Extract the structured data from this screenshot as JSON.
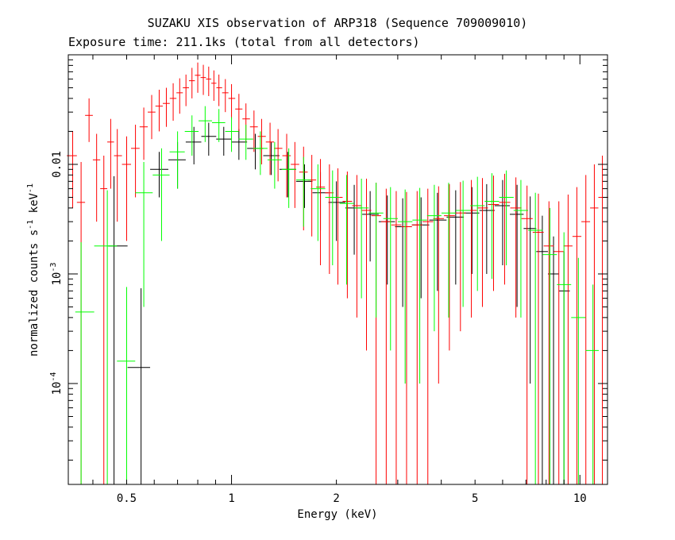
{
  "chart_data": {
    "type": "scatter",
    "title": "SUZAKU XIS observation of ARP318 (Sequence 709009010)",
    "subtitle": "Exposure time: 211.1ks (total from all detectors)",
    "xlabel": "Energy (keV)",
    "ylabel": {
      "pre": "normalized counts s",
      "exp1": "-1",
      "mid": " keV",
      "exp2": "-1"
    },
    "x_scale": "log",
    "y_scale": "log",
    "xlim": [
      0.34,
      12
    ],
    "ylim": [
      1.2e-05,
      0.1
    ],
    "x_ticks": [
      {
        "value": 0.5,
        "label": "0.5"
      },
      {
        "value": 1,
        "label": "1"
      },
      {
        "value": 2,
        "label": "2"
      },
      {
        "value": 5,
        "label": "5"
      },
      {
        "value": 10,
        "label": "10"
      }
    ],
    "y_ticks": [
      {
        "value": 0.01,
        "label": "0.01",
        "exp": ""
      },
      {
        "value": 0.001,
        "label": "10",
        "exp": "-3"
      },
      {
        "value": 0.0001,
        "label": "10",
        "exp": "-4"
      }
    ],
    "series": [
      {
        "color": "#000000",
        "points": [
          [
            0.46,
            0.0018,
            0.006
          ],
          [
            0.55,
            0.00014,
            0.0006
          ],
          [
            0.62,
            0.009,
            0.004
          ],
          [
            0.7,
            0.011,
            0.005
          ],
          [
            0.78,
            0.016,
            0.006
          ],
          [
            0.86,
            0.018,
            0.006
          ],
          [
            0.95,
            0.017,
            0.005
          ],
          [
            1.05,
            0.016,
            0.005
          ],
          [
            1.17,
            0.014,
            0.005
          ],
          [
            1.3,
            0.012,
            0.004
          ],
          [
            1.45,
            0.009,
            0.004
          ],
          [
            1.62,
            0.007,
            0.003
          ],
          [
            1.8,
            0.0055,
            0.003
          ],
          [
            2.0,
            0.0045,
            0.0025
          ],
          [
            2.25,
            0.004,
            0.0025
          ],
          [
            2.5,
            0.0035,
            0.0022
          ],
          [
            2.8,
            0.003,
            0.0022
          ],
          [
            3.1,
            0.0027,
            0.0022
          ],
          [
            3.5,
            0.0028,
            0.0022
          ],
          [
            3.9,
            0.0031,
            0.0024
          ],
          [
            4.4,
            0.0033,
            0.0025
          ],
          [
            4.9,
            0.0036,
            0.0026
          ],
          [
            5.4,
            0.0038,
            0.0028
          ],
          [
            6.0,
            0.0042,
            0.003
          ],
          [
            6.6,
            0.0035,
            0.003
          ],
          [
            7.2,
            0.0026,
            0.0025
          ],
          [
            7.8,
            0.0016,
            0.0018
          ],
          [
            8.4,
            0.001,
            0.0012
          ],
          [
            9.0,
            0.0007,
            0.0009
          ]
        ]
      },
      {
        "color": "#ff0000",
        "points": [
          [
            0.35,
            0.012,
            0.008
          ],
          [
            0.37,
            0.0045,
            0.006
          ],
          [
            0.39,
            0.028,
            0.012
          ],
          [
            0.41,
            0.011,
            0.008
          ],
          [
            0.43,
            0.006,
            0.006
          ],
          [
            0.45,
            0.016,
            0.01
          ],
          [
            0.47,
            0.012,
            0.009
          ],
          [
            0.5,
            0.01,
            0.008
          ],
          [
            0.53,
            0.014,
            0.009
          ],
          [
            0.56,
            0.022,
            0.011
          ],
          [
            0.59,
            0.03,
            0.013
          ],
          [
            0.62,
            0.034,
            0.014
          ],
          [
            0.65,
            0.036,
            0.014
          ],
          [
            0.68,
            0.04,
            0.015
          ],
          [
            0.71,
            0.045,
            0.016
          ],
          [
            0.74,
            0.05,
            0.016
          ],
          [
            0.77,
            0.058,
            0.018
          ],
          [
            0.8,
            0.065,
            0.02
          ],
          [
            0.83,
            0.062,
            0.019
          ],
          [
            0.86,
            0.06,
            0.018
          ],
          [
            0.89,
            0.055,
            0.017
          ],
          [
            0.92,
            0.05,
            0.016
          ],
          [
            0.96,
            0.045,
            0.015
          ],
          [
            1.0,
            0.04,
            0.014
          ],
          [
            1.05,
            0.032,
            0.012
          ],
          [
            1.1,
            0.026,
            0.01
          ],
          [
            1.16,
            0.022,
            0.009
          ],
          [
            1.22,
            0.018,
            0.008
          ],
          [
            1.29,
            0.016,
            0.008
          ],
          [
            1.36,
            0.014,
            0.007
          ],
          [
            1.44,
            0.012,
            0.007
          ],
          [
            1.52,
            0.01,
            0.006
          ],
          [
            1.61,
            0.0085,
            0.006
          ],
          [
            1.7,
            0.0072,
            0.005
          ],
          [
            1.8,
            0.0062,
            0.005
          ],
          [
            1.91,
            0.0055,
            0.0045
          ],
          [
            2.02,
            0.005,
            0.0042
          ],
          [
            2.15,
            0.0046,
            0.004
          ],
          [
            2.29,
            0.0042,
            0.0038
          ],
          [
            2.44,
            0.0038,
            0.0036
          ],
          [
            2.6,
            0.0034,
            0.0034
          ],
          [
            2.78,
            0.003,
            0.003
          ],
          [
            2.97,
            0.0028,
            0.0029
          ],
          [
            3.18,
            0.0027,
            0.0029
          ],
          [
            3.41,
            0.0028,
            0.0029
          ],
          [
            3.66,
            0.003,
            0.003
          ],
          [
            3.93,
            0.0032,
            0.0031
          ],
          [
            4.22,
            0.0034,
            0.0032
          ],
          [
            4.54,
            0.0036,
            0.0033
          ],
          [
            4.88,
            0.0038,
            0.0034
          ],
          [
            5.25,
            0.004,
            0.0035
          ],
          [
            5.65,
            0.0043,
            0.0036
          ],
          [
            6.08,
            0.0045,
            0.0037
          ],
          [
            6.55,
            0.004,
            0.0036
          ],
          [
            7.05,
            0.0032,
            0.0032
          ],
          [
            7.6,
            0.0024,
            0.003
          ],
          [
            8.15,
            0.0018,
            0.0028
          ],
          [
            8.7,
            0.0016,
            0.003
          ],
          [
            9.25,
            0.0018,
            0.0035
          ],
          [
            9.8,
            0.0022,
            0.004
          ],
          [
            10.4,
            0.003,
            0.005
          ],
          [
            11.0,
            0.004,
            0.006
          ],
          [
            11.6,
            0.005,
            0.007
          ]
        ]
      },
      {
        "color": "#00ff00",
        "points": [
          [
            0.37,
            0.00045,
            0.0015
          ],
          [
            0.44,
            0.0018,
            0.004
          ],
          [
            0.5,
            0.00016,
            0.0006
          ],
          [
            0.56,
            0.0055,
            0.005
          ],
          [
            0.63,
            0.008,
            0.006
          ],
          [
            0.7,
            0.013,
            0.007
          ],
          [
            0.77,
            0.02,
            0.008
          ],
          [
            0.84,
            0.025,
            0.009
          ],
          [
            0.92,
            0.024,
            0.008
          ],
          [
            1.0,
            0.02,
            0.007
          ],
          [
            1.1,
            0.017,
            0.006
          ],
          [
            1.21,
            0.014,
            0.006
          ],
          [
            1.33,
            0.011,
            0.005
          ],
          [
            1.46,
            0.009,
            0.005
          ],
          [
            1.61,
            0.0072,
            0.0045
          ],
          [
            1.77,
            0.006,
            0.004
          ],
          [
            1.95,
            0.005,
            0.0038
          ],
          [
            2.14,
            0.0044,
            0.0036
          ],
          [
            2.36,
            0.004,
            0.0034
          ],
          [
            2.6,
            0.0036,
            0.0032
          ],
          [
            2.86,
            0.0032,
            0.003
          ],
          [
            3.15,
            0.003,
            0.0029
          ],
          [
            3.47,
            0.0031,
            0.003
          ],
          [
            3.82,
            0.0034,
            0.0031
          ],
          [
            4.2,
            0.0036,
            0.0032
          ],
          [
            4.62,
            0.0038,
            0.0033
          ],
          [
            5.08,
            0.0042,
            0.0035
          ],
          [
            5.59,
            0.0046,
            0.0037
          ],
          [
            6.15,
            0.005,
            0.0038
          ],
          [
            6.77,
            0.0038,
            0.0034
          ],
          [
            7.45,
            0.0025,
            0.003
          ],
          [
            8.2,
            0.0015,
            0.0025
          ],
          [
            9.0,
            0.0008,
            0.0016
          ],
          [
            9.9,
            0.0004,
            0.001
          ],
          [
            10.9,
            0.0002,
            0.0006
          ]
        ]
      }
    ]
  }
}
